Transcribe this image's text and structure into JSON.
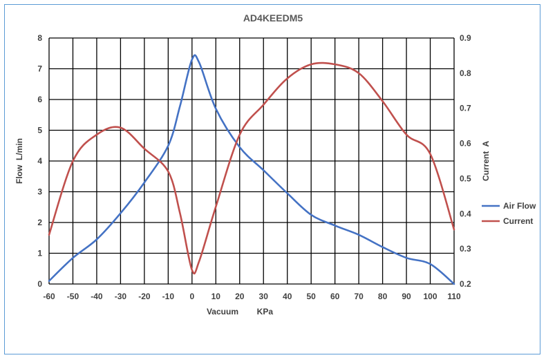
{
  "chart_data": {
    "type": "line",
    "title": "AD4KEEDM5",
    "xlabel": "Vacuum        KPa",
    "ylabel_left": "Flow  L/min",
    "ylabel_right": "Current  A",
    "xlim": [
      -60,
      110
    ],
    "ylim_left": [
      0,
      8
    ],
    "ylim_right": [
      0.2,
      0.9
    ],
    "x_ticks": [
      -60,
      -50,
      -40,
      -30,
      -20,
      -10,
      0,
      10,
      20,
      30,
      40,
      50,
      60,
      70,
      80,
      90,
      100,
      110
    ],
    "y_left_ticks": [
      0,
      1,
      2,
      3,
      4,
      5,
      6,
      7,
      8
    ],
    "y_right_ticks": [
      "0.2",
      "0.3",
      "0.4",
      "0.5",
      "0.6",
      "0.7",
      "0.8",
      "0.9"
    ],
    "grid": true,
    "legend_position": "right",
    "series": [
      {
        "name": "Air Flow",
        "axis": "left",
        "color": "#4472c4",
        "points": [
          [
            -60,
            0.1
          ],
          [
            -50,
            0.85
          ],
          [
            -40,
            1.45
          ],
          [
            -30,
            2.3
          ],
          [
            -20,
            3.3
          ],
          [
            -10,
            4.5
          ],
          [
            -5,
            5.8
          ],
          [
            0,
            7.3
          ],
          [
            3,
            7.2
          ],
          [
            10,
            5.7
          ],
          [
            20,
            4.45
          ],
          [
            30,
            3.7
          ],
          [
            40,
            2.95
          ],
          [
            50,
            2.25
          ],
          [
            60,
            1.9
          ],
          [
            70,
            1.6
          ],
          [
            80,
            1.2
          ],
          [
            90,
            0.85
          ],
          [
            100,
            0.65
          ],
          [
            110,
            0.0
          ]
        ]
      },
      {
        "name": "Current",
        "axis": "right",
        "color": "#c0504d",
        "points": [
          [
            -60,
            0.34
          ],
          [
            -50,
            0.55
          ],
          [
            -40,
            0.625
          ],
          [
            -30,
            0.645
          ],
          [
            -20,
            0.585
          ],
          [
            -10,
            0.52
          ],
          [
            -5,
            0.4
          ],
          [
            0,
            0.24
          ],
          [
            3,
            0.265
          ],
          [
            10,
            0.42
          ],
          [
            20,
            0.625
          ],
          [
            30,
            0.71
          ],
          [
            40,
            0.785
          ],
          [
            50,
            0.825
          ],
          [
            60,
            0.825
          ],
          [
            70,
            0.8
          ],
          [
            80,
            0.72
          ],
          [
            90,
            0.625
          ],
          [
            100,
            0.57
          ],
          [
            110,
            0.355
          ]
        ]
      }
    ]
  }
}
